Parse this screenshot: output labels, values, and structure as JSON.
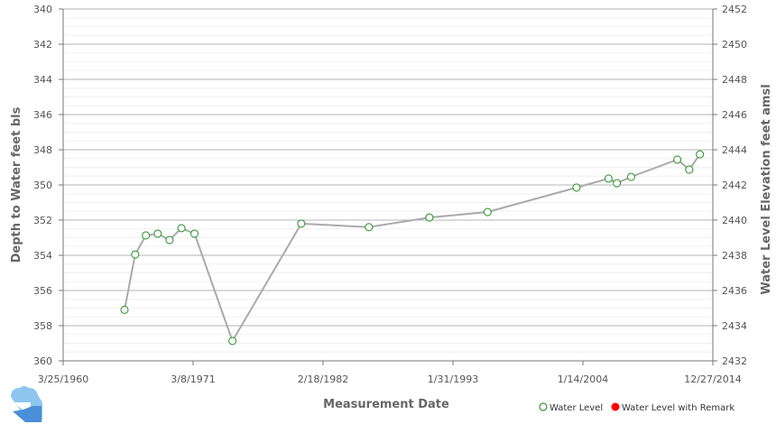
{
  "chart_data": {
    "type": "line",
    "xlabel": "Measurement Date",
    "ylabel": "Depth to Water feet bls",
    "y2label": "Water Level Elevation feet amsl",
    "ylim": [
      360,
      340
    ],
    "y2lim": [
      2432,
      2452
    ],
    "xlim": [
      1960.23,
      2014.99
    ],
    "x_tick_labels": [
      "3/25/1960",
      "3/8/1971",
      "2/18/1982",
      "1/31/1993",
      "1/14/2004",
      "12/27/2014"
    ],
    "y_tick_labels": [
      "340",
      "342",
      "344",
      "346",
      "348",
      "350",
      "352",
      "354",
      "356",
      "358",
      "360"
    ],
    "y2_tick_labels": [
      "2452",
      "2450",
      "2448",
      "2446",
      "2444",
      "2442",
      "2440",
      "2438",
      "2436",
      "2434",
      "2432"
    ],
    "grid": true,
    "legend": [
      {
        "label": "Water Level",
        "color": "#339933",
        "marker": "open-circle"
      },
      {
        "label": "Water Level with Remark",
        "color": "#ff0000",
        "marker": "filled-circle"
      }
    ],
    "legend_position": "bottom-right",
    "line_color": "#aaaaaa",
    "series": [
      {
        "name": "Water Level",
        "x": [
          1965.4,
          1966.3,
          1967.2,
          1968.2,
          1969.2,
          1970.2,
          1971.3,
          1974.5,
          1980.3,
          1986.0,
          1991.1,
          1996.0,
          2003.5,
          2006.2,
          2006.9,
          2008.1,
          2012.0,
          2013.0,
          2013.9
        ],
        "y": [
          357.1,
          353.95,
          352.87,
          352.77,
          353.13,
          352.46,
          352.77,
          358.87,
          352.2,
          352.4,
          351.85,
          351.54,
          350.15,
          349.64,
          349.9,
          349.54,
          348.56,
          349.13,
          348.26
        ]
      }
    ]
  }
}
